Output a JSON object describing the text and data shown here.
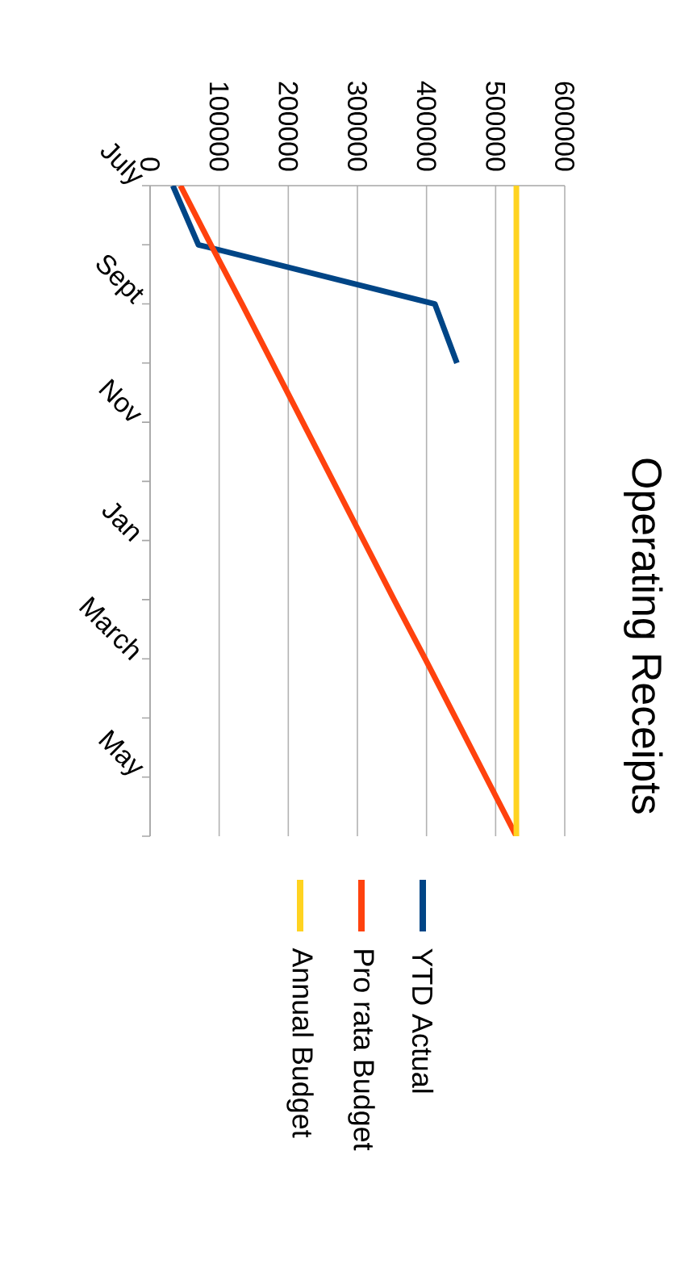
{
  "chart_data": {
    "type": "line",
    "title": "Operating Receipts",
    "categories": [
      "July",
      null,
      "Sept",
      null,
      "Nov",
      null,
      "Jan",
      null,
      "March",
      null,
      "May",
      null
    ],
    "series": [
      {
        "name": "YTD Actual",
        "color": "#004586",
        "values": [
          33000,
          70000,
          412000,
          444000,
          null,
          null,
          null,
          null,
          null,
          null,
          null,
          null
        ]
      },
      {
        "name": "Pro rata Budget",
        "color": "#ff420e",
        "values": [
          44000,
          88000,
          133000,
          177000,
          221000,
          265000,
          309000,
          353000,
          398000,
          442000,
          486000,
          530000
        ]
      },
      {
        "name": "Annual Budget",
        "color": "#ffd320",
        "values": [
          530000,
          530000,
          530000,
          530000,
          530000,
          530000,
          530000,
          530000,
          530000,
          530000,
          530000,
          530000
        ]
      }
    ],
    "orientation": "horizontal",
    "xlim": [
      0,
      600000
    ],
    "xticks": [
      0,
      100000,
      200000,
      300000,
      400000,
      500000,
      600000
    ],
    "grid": "x",
    "legend": "right",
    "line_style": "solid",
    "marker": "none"
  }
}
